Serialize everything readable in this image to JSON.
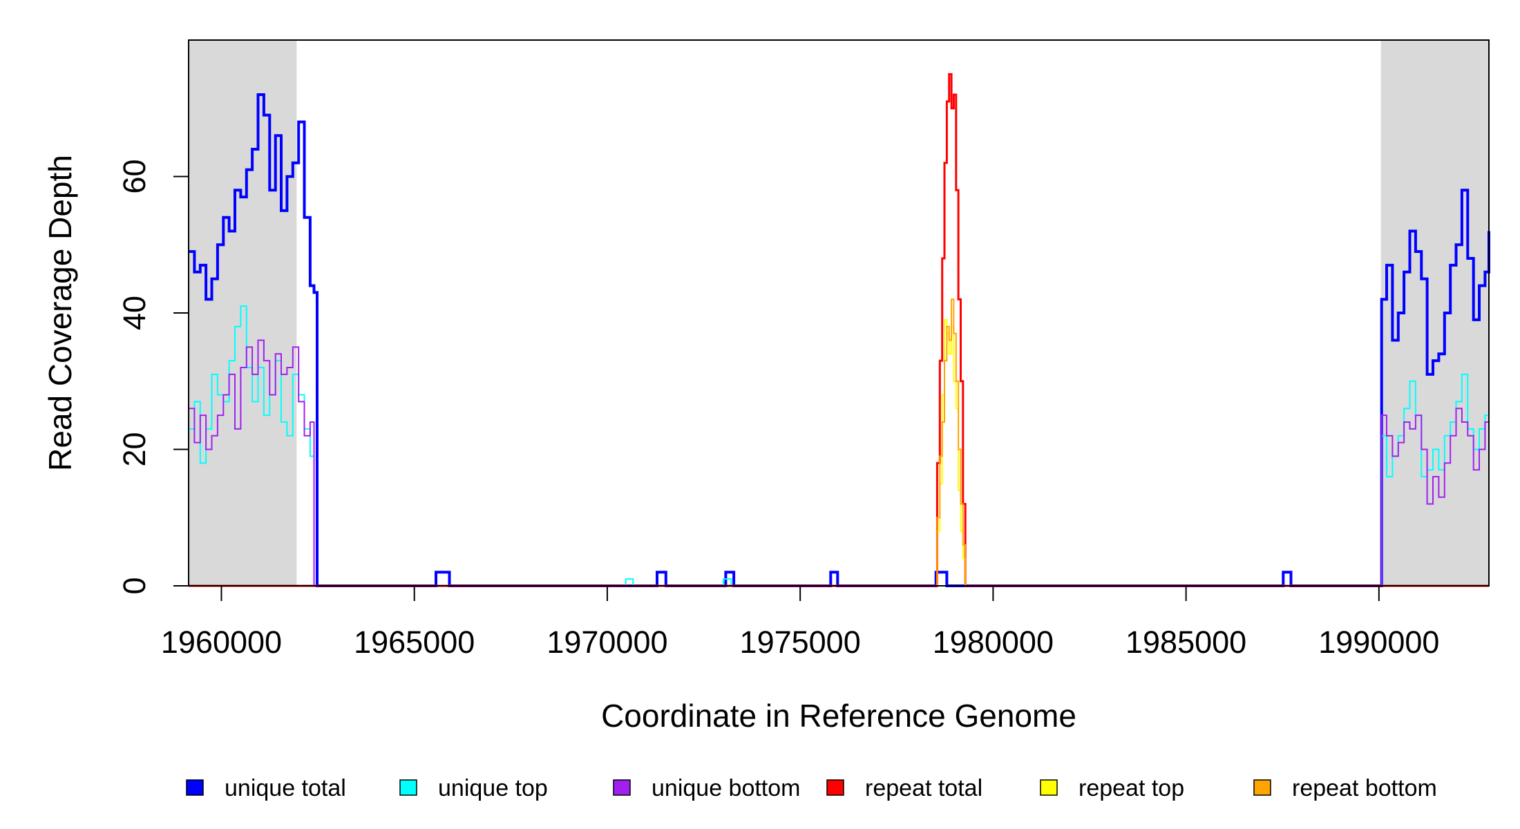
{
  "chart_data": {
    "type": "line",
    "style": "step",
    "xlabel": "Coordinate in Reference Genome",
    "ylabel": "Read Coverage Depth",
    "xlim": [
      1959150,
      1992850
    ],
    "ylim": [
      0,
      80
    ],
    "x_ticks": [
      1960000,
      1965000,
      1970000,
      1975000,
      1980000,
      1985000,
      1990000
    ],
    "x_tick_labels": [
      "1960000",
      "1965000",
      "1970000",
      "1975000",
      "1980000",
      "1985000",
      "1990000"
    ],
    "y_ticks": [
      0,
      20,
      40,
      60
    ],
    "y_tick_labels": [
      "0",
      "20",
      "40",
      "60"
    ],
    "shaded_regions": [
      {
        "from": 1959150,
        "to": 1961950,
        "color": "#d9d9d9"
      },
      {
        "from": 1990050,
        "to": 1992850,
        "color": "#d9d9d9"
      }
    ],
    "legend_position": "bottom",
    "legend": [
      {
        "label": "unique total",
        "color": "#0000ff"
      },
      {
        "label": "unique top",
        "color": "#00ffff"
      },
      {
        "label": "unique bottom",
        "color": "#a020f0"
      },
      {
        "label": "repeat total",
        "color": "#ff0000"
      },
      {
        "label": "repeat top",
        "color": "#ffff00"
      },
      {
        "label": "repeat bottom",
        "color": "#ffa500"
      }
    ],
    "series": [
      {
        "name": "unique total",
        "color": "#0000ff",
        "width": 4,
        "points": [
          [
            1959150,
            49
          ],
          [
            1959300,
            46
          ],
          [
            1959450,
            47
          ],
          [
            1959600,
            42
          ],
          [
            1959750,
            45
          ],
          [
            1959900,
            50
          ],
          [
            1960050,
            54
          ],
          [
            1960200,
            52
          ],
          [
            1960350,
            58
          ],
          [
            1960500,
            57
          ],
          [
            1960650,
            61
          ],
          [
            1960800,
            64
          ],
          [
            1960950,
            72
          ],
          [
            1961100,
            69
          ],
          [
            1961250,
            58
          ],
          [
            1961400,
            66
          ],
          [
            1961550,
            55
          ],
          [
            1961700,
            60
          ],
          [
            1961850,
            62
          ],
          [
            1962000,
            68
          ],
          [
            1962150,
            54
          ],
          [
            1962300,
            44
          ],
          [
            1962400,
            43
          ],
          [
            1962480,
            0
          ],
          [
            1965500,
            0
          ],
          [
            1965560,
            2
          ],
          [
            1965850,
            2
          ],
          [
            1965910,
            0
          ],
          [
            1971250,
            0
          ],
          [
            1971290,
            2
          ],
          [
            1971480,
            2
          ],
          [
            1971520,
            0
          ],
          [
            1973020,
            0
          ],
          [
            1973070,
            2
          ],
          [
            1973230,
            2
          ],
          [
            1973280,
            0
          ],
          [
            1975750,
            0
          ],
          [
            1975790,
            2
          ],
          [
            1975930,
            2
          ],
          [
            1975970,
            0
          ],
          [
            1978480,
            0
          ],
          [
            1978520,
            2
          ],
          [
            1978760,
            2
          ],
          [
            1978800,
            0
          ],
          [
            1987480,
            0
          ],
          [
            1987520,
            2
          ],
          [
            1987680,
            2
          ],
          [
            1987720,
            0
          ],
          [
            1990050,
            0
          ],
          [
            1990070,
            42
          ],
          [
            1990200,
            47
          ],
          [
            1990350,
            36
          ],
          [
            1990500,
            40
          ],
          [
            1990650,
            46
          ],
          [
            1990800,
            52
          ],
          [
            1990950,
            49
          ],
          [
            1991100,
            45
          ],
          [
            1991250,
            31
          ],
          [
            1991400,
            33
          ],
          [
            1991550,
            34
          ],
          [
            1991700,
            40
          ],
          [
            1991850,
            47
          ],
          [
            1992000,
            50
          ],
          [
            1992150,
            58
          ],
          [
            1992300,
            48
          ],
          [
            1992450,
            39
          ],
          [
            1992600,
            44
          ],
          [
            1992750,
            46
          ],
          [
            1992850,
            52
          ]
        ]
      },
      {
        "name": "unique top",
        "color": "#00ffff",
        "width": 2,
        "points": [
          [
            1959150,
            23
          ],
          [
            1959300,
            27
          ],
          [
            1959450,
            18
          ],
          [
            1959600,
            23
          ],
          [
            1959750,
            31
          ],
          [
            1959900,
            28
          ],
          [
            1960050,
            27
          ],
          [
            1960200,
            33
          ],
          [
            1960350,
            38
          ],
          [
            1960500,
            41
          ],
          [
            1960650,
            32
          ],
          [
            1960800,
            27
          ],
          [
            1960950,
            32
          ],
          [
            1961100,
            25
          ],
          [
            1961250,
            28
          ],
          [
            1961400,
            33
          ],
          [
            1961550,
            24
          ],
          [
            1961700,
            22
          ],
          [
            1961850,
            31
          ],
          [
            1962000,
            28
          ],
          [
            1962150,
            23
          ],
          [
            1962300,
            19
          ],
          [
            1962400,
            0
          ],
          [
            1970450,
            0
          ],
          [
            1970480,
            1
          ],
          [
            1970640,
            1
          ],
          [
            1970670,
            0
          ],
          [
            1972980,
            0
          ],
          [
            1973010,
            1
          ],
          [
            1973180,
            1
          ],
          [
            1973210,
            0
          ],
          [
            1990050,
            0
          ],
          [
            1990070,
            22
          ],
          [
            1990200,
            16
          ],
          [
            1990350,
            19
          ],
          [
            1990500,
            22
          ],
          [
            1990650,
            26
          ],
          [
            1990800,
            30
          ],
          [
            1990950,
            25
          ],
          [
            1991100,
            16
          ],
          [
            1991250,
            17
          ],
          [
            1991400,
            20
          ],
          [
            1991550,
            17
          ],
          [
            1991700,
            22
          ],
          [
            1991850,
            24
          ],
          [
            1992000,
            27
          ],
          [
            1992150,
            31
          ],
          [
            1992300,
            23
          ],
          [
            1992450,
            20
          ],
          [
            1992600,
            23
          ],
          [
            1992750,
            25
          ],
          [
            1992850,
            22
          ]
        ]
      },
      {
        "name": "unique bottom",
        "color": "#a020f0",
        "width": 2,
        "points": [
          [
            1959150,
            26
          ],
          [
            1959300,
            21
          ],
          [
            1959450,
            25
          ],
          [
            1959600,
            20
          ],
          [
            1959750,
            22
          ],
          [
            1959900,
            25
          ],
          [
            1960050,
            28
          ],
          [
            1960200,
            31
          ],
          [
            1960350,
            23
          ],
          [
            1960500,
            32
          ],
          [
            1960650,
            35
          ],
          [
            1960800,
            31
          ],
          [
            1960950,
            36
          ],
          [
            1961100,
            33
          ],
          [
            1961250,
            28
          ],
          [
            1961400,
            34
          ],
          [
            1961550,
            31
          ],
          [
            1961700,
            32
          ],
          [
            1961850,
            35
          ],
          [
            1962000,
            27
          ],
          [
            1962150,
            22
          ],
          [
            1962300,
            24
          ],
          [
            1962400,
            0
          ],
          [
            1990050,
            0
          ],
          [
            1990070,
            25
          ],
          [
            1990200,
            22
          ],
          [
            1990350,
            19
          ],
          [
            1990500,
            21
          ],
          [
            1990650,
            24
          ],
          [
            1990800,
            23
          ],
          [
            1990950,
            25
          ],
          [
            1991100,
            20
          ],
          [
            1991250,
            12
          ],
          [
            1991400,
            16
          ],
          [
            1991550,
            13
          ],
          [
            1991700,
            18
          ],
          [
            1991850,
            22
          ],
          [
            1992000,
            26
          ],
          [
            1992150,
            24
          ],
          [
            1992300,
            22
          ],
          [
            1992450,
            17
          ],
          [
            1992600,
            20
          ],
          [
            1992750,
            24
          ],
          [
            1992850,
            20
          ]
        ]
      },
      {
        "name": "repeat total",
        "color": "#ff0000",
        "width": 3,
        "points": [
          [
            1959150,
            0
          ],
          [
            1978500,
            0
          ],
          [
            1978550,
            18
          ],
          [
            1978620,
            33
          ],
          [
            1978680,
            48
          ],
          [
            1978740,
            62
          ],
          [
            1978800,
            71
          ],
          [
            1978860,
            75
          ],
          [
            1978920,
            70
          ],
          [
            1978980,
            72
          ],
          [
            1979040,
            58
          ],
          [
            1979100,
            42
          ],
          [
            1979160,
            30
          ],
          [
            1979220,
            12
          ],
          [
            1979280,
            0
          ],
          [
            1992850,
            0
          ]
        ]
      },
      {
        "name": "repeat top",
        "color": "#ffff00",
        "width": 2,
        "points": [
          [
            1959150,
            0
          ],
          [
            1978500,
            0
          ],
          [
            1978550,
            8
          ],
          [
            1978620,
            15
          ],
          [
            1978680,
            28
          ],
          [
            1978740,
            39
          ],
          [
            1978800,
            37
          ],
          [
            1978860,
            34
          ],
          [
            1978920,
            38
          ],
          [
            1978980,
            30
          ],
          [
            1979040,
            26
          ],
          [
            1979100,
            14
          ],
          [
            1979160,
            8
          ],
          [
            1979220,
            4
          ],
          [
            1979280,
            0
          ],
          [
            1992850,
            0
          ]
        ]
      },
      {
        "name": "repeat bottom",
        "color": "#ffa500",
        "width": 2,
        "points": [
          [
            1959150,
            0
          ],
          [
            1978500,
            0
          ],
          [
            1978550,
            10
          ],
          [
            1978620,
            19
          ],
          [
            1978680,
            24
          ],
          [
            1978740,
            33
          ],
          [
            1978800,
            38
          ],
          [
            1978860,
            36
          ],
          [
            1978920,
            42
          ],
          [
            1978980,
            37
          ],
          [
            1979040,
            30
          ],
          [
            1979100,
            20
          ],
          [
            1979160,
            12
          ],
          [
            1979220,
            6
          ],
          [
            1979280,
            0
          ],
          [
            1992850,
            0
          ]
        ]
      }
    ]
  }
}
